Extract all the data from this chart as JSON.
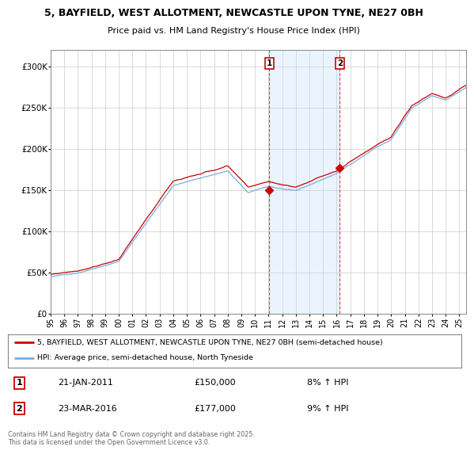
{
  "title1": "5, BAYFIELD, WEST ALLOTMENT, NEWCASTLE UPON TYNE, NE27 0BH",
  "title2": "Price paid vs. HM Land Registry's House Price Index (HPI)",
  "background_color": "#ffffff",
  "plot_bg_color": "#ffffff",
  "hpi_fill_color": "#ddeeff",
  "red_line_color": "#cc0000",
  "blue_line_color": "#7aade0",
  "marker1_x": 2011.05,
  "marker2_x": 2016.22,
  "marker1_date": "21-JAN-2011",
  "marker1_price": "£150,000",
  "marker1_hpi": "8% ↑ HPI",
  "marker2_date": "23-MAR-2016",
  "marker2_price": "£177,000",
  "marker2_hpi": "9% ↑ HPI",
  "legend_line1": "5, BAYFIELD, WEST ALLOTMENT, NEWCASTLE UPON TYNE, NE27 0BH (semi-detached house)",
  "legend_line2": "HPI: Average price, semi-detached house, North Tyneside",
  "footer": "Contains HM Land Registry data © Crown copyright and database right 2025.\nThis data is licensed under the Open Government Licence v3.0.",
  "ylim": [
    0,
    320000
  ],
  "yticks": [
    0,
    50000,
    100000,
    150000,
    200000,
    250000,
    300000
  ],
  "ytick_labels": [
    "£0",
    "£50K",
    "£100K",
    "£150K",
    "£200K",
    "£250K",
    "£300K"
  ],
  "xstart": 1995.0,
  "xend": 2025.5,
  "marker1_price_val": 150000,
  "marker2_price_val": 177000
}
